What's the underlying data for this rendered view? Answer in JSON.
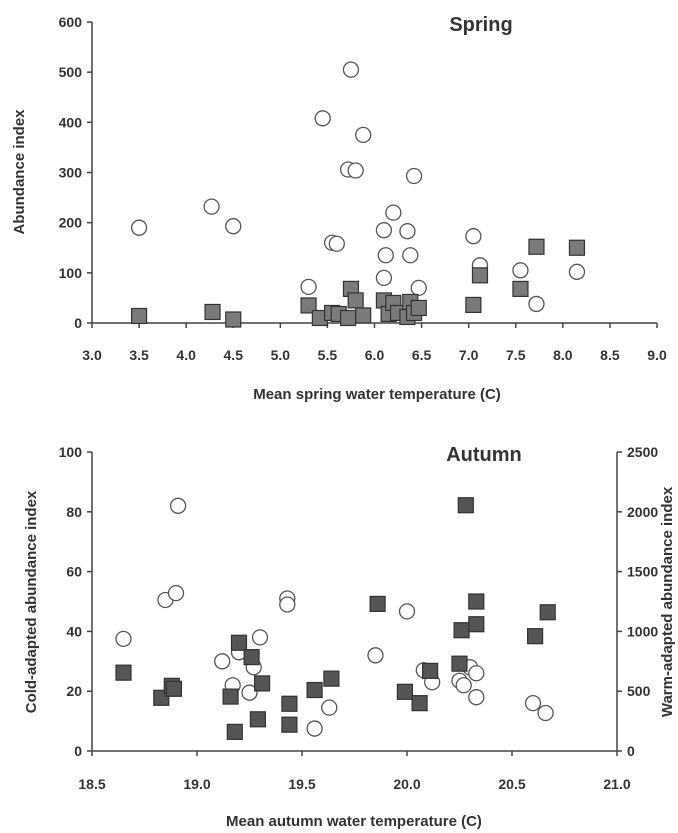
{
  "colors": {
    "axis": "#444444",
    "open_marker_stroke": "#555555",
    "open_marker_fill": "#ffffff",
    "square_fill": "#7a7a7a",
    "square_fill_dark": "#555555",
    "text": "#333333"
  },
  "chart_data": [
    {
      "type": "scatter",
      "title": "Spring",
      "xlabel": "Mean spring water temperature (C)",
      "ylabel": "Abundance index",
      "xlim": [
        3.0,
        9.0
      ],
      "ylim": [
        0,
        600
      ],
      "xticks": [
        "3.0",
        "3.5",
        "4.0",
        "4.5",
        "5.0",
        "5.5",
        "6.0",
        "6.5",
        "7.0",
        "7.5",
        "8.0",
        "8.5",
        "9.0"
      ],
      "yticks": [
        "0",
        "100",
        "200",
        "300",
        "400",
        "500",
        "600"
      ],
      "grid": false,
      "series": [
        {
          "marker": "open-circle",
          "x": [
            3.5,
            4.27,
            4.5,
            5.3,
            5.45,
            5.55,
            5.6,
            5.72,
            5.75,
            5.8,
            5.88,
            6.1,
            6.1,
            6.12,
            6.2,
            6.35,
            6.38,
            6.42,
            6.47,
            7.05,
            7.12,
            7.55,
            7.72,
            8.15
          ],
          "y": [
            190,
            232,
            193,
            72,
            408,
            160,
            158,
            306,
            505,
            304,
            375,
            90,
            185,
            135,
            220,
            183,
            135,
            293,
            70,
            173,
            115,
            105,
            38,
            102
          ]
        },
        {
          "marker": "filled-square",
          "x": [
            3.5,
            4.28,
            4.5,
            5.3,
            5.42,
            5.55,
            5.62,
            5.72,
            5.75,
            5.8,
            5.88,
            6.1,
            6.15,
            6.2,
            6.25,
            6.35,
            6.38,
            6.42,
            6.47,
            7.05,
            7.12,
            7.55,
            7.72,
            8.15
          ],
          "y": [
            14,
            22,
            7,
            35,
            10,
            20,
            18,
            10,
            68,
            45,
            15,
            45,
            18,
            40,
            20,
            12,
            42,
            20,
            30,
            36,
            95,
            68,
            152,
            150
          ]
        }
      ]
    },
    {
      "type": "scatter",
      "title": "Autumn",
      "xlabel": "Mean autumn water temperature (C)",
      "ylabel": "Cold-adapted abundance index",
      "y2label": "Warm-adapted abundance index",
      "xlim": [
        18.5,
        21.0
      ],
      "ylim": [
        0,
        100
      ],
      "y2lim": [
        0,
        2500
      ],
      "xticks": [
        "18.5",
        "19.0",
        "19.5",
        "20.0",
        "20.5",
        "21.0"
      ],
      "yticks": [
        "0",
        "20",
        "40",
        "60",
        "80",
        "100"
      ],
      "y2ticks": [
        "0",
        "500",
        "1000",
        "1500",
        "2000",
        "2500"
      ],
      "grid": false,
      "series": [
        {
          "marker": "open-circle",
          "axis": "left",
          "x": [
            18.65,
            18.85,
            18.9,
            18.91,
            19.12,
            19.17,
            19.2,
            19.25,
            19.27,
            19.3,
            19.43,
            19.43,
            19.56,
            19.63,
            19.85,
            20.0,
            20.08,
            20.12,
            20.25,
            20.27,
            20.3,
            20.33,
            20.33,
            20.6,
            20.66
          ],
          "y": [
            37.5,
            50.5,
            52.8,
            82,
            30,
            22,
            33,
            19.5,
            28,
            38,
            51,
            49,
            7.5,
            14.5,
            32,
            46.7,
            27,
            23,
            23.5,
            22,
            28,
            18,
            26,
            16,
            12.7
          ]
        },
        {
          "marker": "filled-square",
          "axis": "right",
          "x": [
            18.65,
            18.83,
            18.88,
            18.89,
            19.16,
            19.18,
            19.2,
            19.26,
            19.29,
            19.31,
            19.44,
            19.44,
            19.56,
            19.64,
            19.86,
            19.99,
            20.06,
            20.11,
            20.25,
            20.26,
            20.28,
            20.33,
            20.33,
            20.61,
            20.67
          ],
          "y": [
            655,
            445,
            545,
            520,
            455,
            160,
            905,
            785,
            265,
            565,
            395,
            220,
            510,
            605,
            1230,
            495,
            400,
            670,
            730,
            1010,
            2055,
            1060,
            1250,
            960,
            1160
          ]
        }
      ]
    }
  ]
}
